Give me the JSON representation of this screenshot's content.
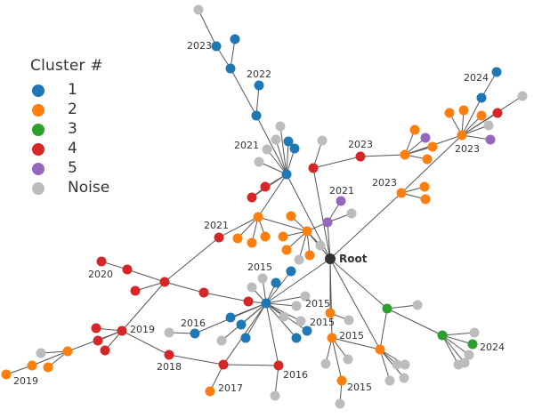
{
  "legend": {
    "title": "Cluster #",
    "items": [
      {
        "label": "1",
        "color": "#1f77b4"
      },
      {
        "label": "2",
        "color": "#ff7f0e"
      },
      {
        "label": "3",
        "color": "#2ca02c"
      },
      {
        "label": "4",
        "color": "#d62728"
      },
      {
        "label": "5",
        "color": "#9467bd"
      },
      {
        "label": "Noise",
        "color": "#bcbcbc"
      }
    ]
  },
  "graph": {
    "root_label": "Root",
    "year_labels": [
      "2023",
      "2022",
      "2021",
      "2023",
      "2024",
      "2023",
      "2023",
      "2021",
      "2021",
      "2020",
      "2015",
      "2015",
      "2015",
      "2016",
      "2019",
      "2018",
      "2017",
      "2016",
      "2015",
      "2015",
      "2024",
      "2019"
    ]
  }
}
